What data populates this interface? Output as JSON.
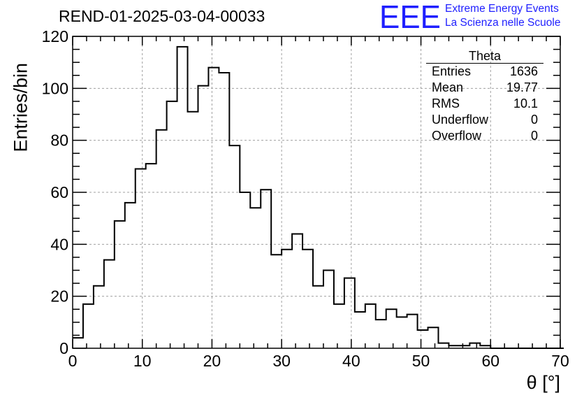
{
  "header": {
    "run_title": "REND-01-2025-03-04-00033",
    "logo_text": "EEE",
    "logo_line1": "Extreme Energy Events",
    "logo_line2": "La Scienza nelle Scuole"
  },
  "stats_box": {
    "title": "Theta",
    "rows": [
      {
        "label": "Entries",
        "value": "1636"
      },
      {
        "label": "Mean",
        "value": "19.77"
      },
      {
        "label": "RMS",
        "value": "10.1"
      },
      {
        "label": "Underflow",
        "value": "0"
      },
      {
        "label": "Overflow",
        "value": "0"
      }
    ]
  },
  "colors": {
    "logo": "#1f1fff",
    "line": "#000000",
    "grid": "#a0a0a0"
  },
  "chart_data": {
    "type": "bar",
    "style": "step-histogram",
    "xlabel": "θ [°]",
    "ylabel": "Entries/bin",
    "xlim": [
      0,
      70
    ],
    "ylim": [
      0,
      120
    ],
    "x_ticks": [
      "0",
      "10",
      "20",
      "30",
      "40",
      "50",
      "60",
      "70"
    ],
    "y_ticks": [
      "0",
      "20",
      "40",
      "60",
      "80",
      "100",
      "120"
    ],
    "grid": true,
    "bin_edges_start": 0,
    "bin_width": 1.5,
    "values": [
      4,
      17,
      24,
      34,
      49,
      56,
      69,
      71,
      84,
      95,
      116,
      91,
      101,
      108,
      106,
      78,
      60,
      54,
      61,
      36,
      38,
      44,
      38,
      24,
      30,
      17,
      27,
      14,
      17,
      11,
      15,
      12,
      13,
      7,
      8,
      2,
      1,
      1,
      2,
      1,
      0,
      0,
      0,
      0,
      0,
      0,
      0
    ]
  }
}
